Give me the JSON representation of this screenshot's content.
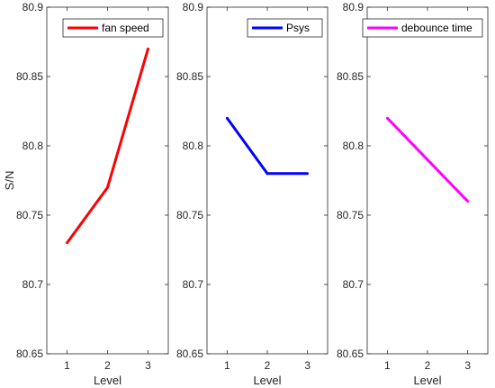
{
  "chart_data": [
    {
      "type": "line",
      "x": [
        1,
        2,
        3
      ],
      "series": [
        {
          "name": "fan speed",
          "values": [
            80.73,
            80.77,
            80.87
          ],
          "color": "#ff0000"
        }
      ],
      "xlabel": "Level",
      "ylabel": "S/N",
      "xlim": [
        0.5,
        3.5
      ],
      "ylim": [
        80.65,
        80.9
      ],
      "xticks": [
        "1",
        "2",
        "3"
      ],
      "yticks": [
        "80.65",
        "80.7",
        "80.75",
        "80.8",
        "80.85",
        "80.9"
      ],
      "legend": "top-right",
      "grid": false
    },
    {
      "type": "line",
      "x": [
        1,
        2,
        3
      ],
      "series": [
        {
          "name": "Psys",
          "values": [
            80.82,
            80.78,
            80.78
          ],
          "color": "#0000ff"
        }
      ],
      "xlabel": "Level",
      "ylabel": "",
      "xlim": [
        0.5,
        3.5
      ],
      "ylim": [
        80.65,
        80.9
      ],
      "xticks": [
        "1",
        "2",
        "3"
      ],
      "yticks": [
        "80.65",
        "80.7",
        "80.75",
        "80.8",
        "80.85",
        "80.9"
      ],
      "legend": "top-right",
      "grid": false
    },
    {
      "type": "line",
      "x": [
        1,
        2,
        3
      ],
      "series": [
        {
          "name": "debounce time",
          "values": [
            80.82,
            80.79,
            80.76
          ],
          "color": "#ff00ff"
        }
      ],
      "xlabel": "Level",
      "ylabel": "",
      "xlim": [
        0.5,
        3.5
      ],
      "ylim": [
        80.65,
        80.9
      ],
      "xticks": [
        "1",
        "2",
        "3"
      ],
      "yticks": [
        "80.65",
        "80.7",
        "80.75",
        "80.8",
        "80.85",
        "80.9"
      ],
      "legend": "top-right",
      "grid": false
    }
  ]
}
